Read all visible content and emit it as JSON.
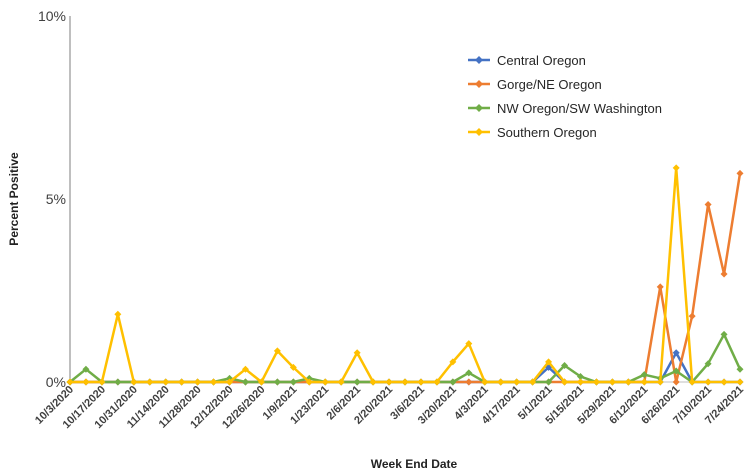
{
  "chart_data": {
    "type": "line",
    "title": "",
    "xlabel": "Week End Date",
    "ylabel": "Percent Positive",
    "y_tick_labels": [
      "0%",
      "5%",
      "10%"
    ],
    "y_ticks": [
      0,
      5,
      10
    ],
    "ylim": [
      0,
      10
    ],
    "grid": false,
    "legend_position": "top-right",
    "categories": [
      "10/3/2020",
      "10/10/2020",
      "10/17/2020",
      "10/24/2020",
      "10/31/2020",
      "11/7/2020",
      "11/14/2020",
      "11/21/2020",
      "11/28/2020",
      "12/5/2020",
      "12/12/2020",
      "12/19/2020",
      "12/26/2020",
      "1/2/2021",
      "1/9/2021",
      "1/16/2021",
      "1/23/2021",
      "1/30/2021",
      "2/6/2021",
      "2/13/2021",
      "2/20/2021",
      "2/27/2021",
      "3/6/2021",
      "3/13/2021",
      "3/20/2021",
      "3/27/2021",
      "4/3/2021",
      "4/10/2021",
      "4/17/2021",
      "4/24/2021",
      "5/1/2021",
      "5/8/2021",
      "5/15/2021",
      "5/22/2021",
      "5/29/2021",
      "6/5/2021",
      "6/12/2021",
      "6/19/2021",
      "6/26/2021",
      "7/3/2021",
      "7/10/2021",
      "7/17/2021",
      "7/24/2021"
    ],
    "x_tick_labels": [
      "10/3/2020",
      "10/17/2020",
      "10/31/2020",
      "11/14/2020",
      "11/28/2020",
      "12/12/2020",
      "12/26/2020",
      "1/9/2021",
      "1/23/2021",
      "2/6/2021",
      "2/20/2021",
      "3/6/2021",
      "3/20/2021",
      "4/3/2021",
      "4/17/2021",
      "5/1/2021",
      "5/15/2021",
      "5/29/2021",
      "6/12/2021",
      "6/26/2021",
      "7/10/2021",
      "7/24/2021"
    ],
    "series": [
      {
        "name": "Central Oregon",
        "color": "#4472C4",
        "values": [
          0,
          0,
          0,
          0,
          0,
          0,
          0,
          0,
          0,
          0,
          0,
          0,
          0,
          0,
          0,
          0,
          0,
          0,
          0,
          0,
          0,
          0,
          0,
          0,
          0,
          0,
          0,
          0,
          0,
          0,
          0.4,
          0,
          0,
          0,
          0,
          0,
          0,
          0,
          0.8,
          0,
          0,
          0,
          0
        ]
      },
      {
        "name": "Gorge/NE Oregon",
        "color": "#ED7D31",
        "values": [
          0,
          0,
          0,
          0,
          0,
          0,
          0,
          0,
          0,
          0,
          0,
          0,
          0,
          0,
          0,
          0,
          0,
          0,
          0,
          0,
          0,
          0,
          0,
          0,
          0,
          0,
          0,
          0,
          0,
          0,
          0,
          0,
          0,
          0,
          0,
          0,
          0,
          2.6,
          0,
          1.8,
          4.85,
          2.95,
          5.7
        ]
      },
      {
        "name": "NW Oregon/SW Washington",
        "color": "#70AD47",
        "values": [
          0,
          0.35,
          0,
          0,
          0,
          0,
          0,
          0,
          0,
          0,
          0.1,
          0,
          0,
          0,
          0,
          0.1,
          0,
          0,
          0,
          0,
          0,
          0,
          0,
          0,
          0,
          0.25,
          0,
          0,
          0,
          0,
          0,
          0.45,
          0.15,
          0,
          0,
          0,
          0.2,
          0.1,
          0.3,
          0,
          0.5,
          1.3,
          0.35
        ]
      },
      {
        "name": "Southern Oregon",
        "color": "#FFC000",
        "values": [
          0,
          0,
          0,
          1.85,
          0,
          0,
          0,
          0,
          0,
          0,
          0,
          0.35,
          0,
          0.85,
          0.4,
          0,
          0,
          0,
          0.8,
          0,
          0,
          0,
          0,
          0,
          0.55,
          1.05,
          0,
          0,
          0,
          0,
          0.55,
          0,
          0,
          0,
          0,
          0,
          0,
          0,
          5.85,
          0,
          0,
          0,
          0
        ]
      }
    ]
  }
}
